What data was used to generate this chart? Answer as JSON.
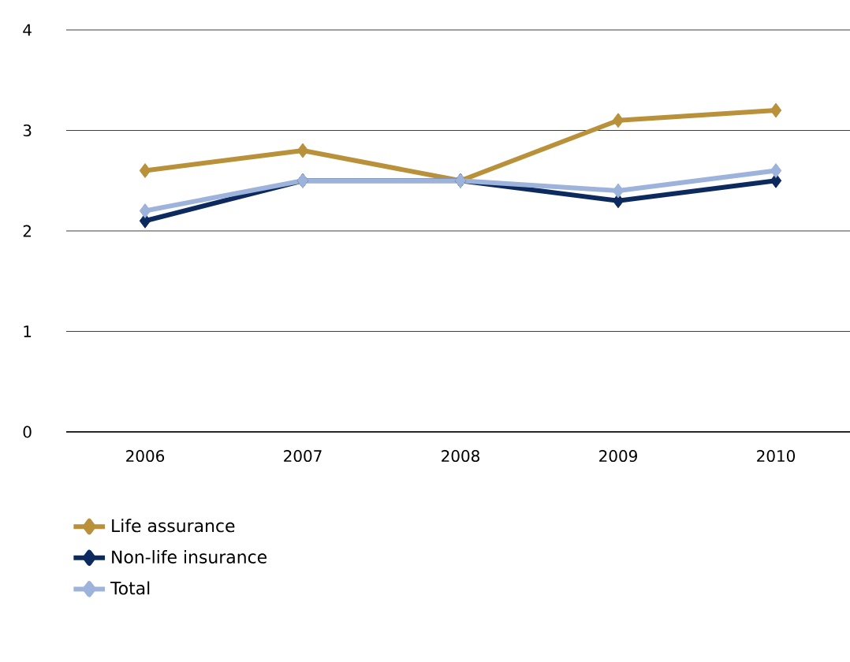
{
  "chart_data": {
    "type": "line",
    "categories": [
      "2006",
      "2007",
      "2008",
      "2009",
      "2010"
    ],
    "series": [
      {
        "name": "Life assurance",
        "color": "#b8913a",
        "values": [
          2.6,
          2.8,
          2.5,
          3.1,
          3.2
        ]
      },
      {
        "name": "Non-life insurance",
        "color": "#0d2a5e",
        "values": [
          2.1,
          2.5,
          2.5,
          2.3,
          2.5
        ]
      },
      {
        "name": "Total",
        "color": "#9db3dc",
        "values": [
          2.2,
          2.5,
          2.5,
          2.4,
          2.6
        ]
      }
    ],
    "ylim": [
      0,
      4
    ],
    "yticks": [
      0,
      1,
      2,
      3,
      4
    ],
    "grid": "y",
    "legend": "bottom left",
    "marker": "diamond",
    "line_style": "solid"
  }
}
